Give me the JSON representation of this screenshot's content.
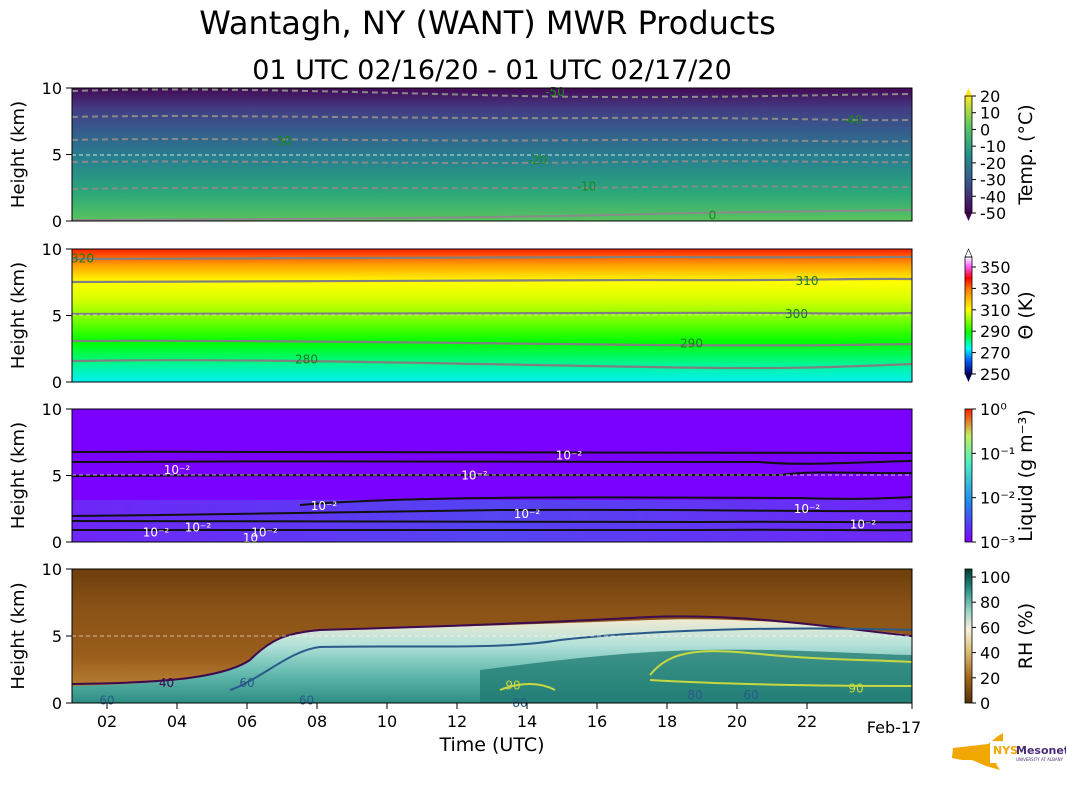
{
  "title": "Wantagh, NY (WANT) MWR Products",
  "subtitle": "01 UTC 02/16/20 - 01 UTC 02/17/20",
  "logo": {
    "text": "NYS Mesonet",
    "sub": "UNIVERSITY AT ALBANY"
  },
  "colors": {
    "contour_gray": "#888888",
    "label_green": "#1a8a1a",
    "liquid_bg": "#7a00ff",
    "rh_brown": "#7a4a12",
    "rh_teal": "#1f7a70"
  },
  "chart_data": [
    {
      "type": "heatmap",
      "panel": "temperature",
      "ylabel": "Height (km)",
      "ylim": [
        0,
        10
      ],
      "yticks": [
        "0",
        "5",
        "10"
      ],
      "colorbar_label": "Temp. (°C)",
      "colorbar_ticks": [
        "20",
        "10",
        "0",
        "-10",
        "-20",
        "-30",
        "-40",
        "-50"
      ],
      "contours": [
        {
          "label": "-50",
          "height_km": 9.7,
          "label_time": 14.8
        },
        {
          "label": "-40",
          "height_km": 7.6,
          "label_time": 23.3
        },
        {
          "label": "-30",
          "height_km": 6.0,
          "label_time": 7.0
        },
        {
          "label": "-20",
          "height_km": 4.6,
          "label_time": 14.3
        },
        {
          "label": "-10",
          "height_km": 2.6,
          "label_time": 15.7
        },
        {
          "label": "0",
          "height_km": 0.4,
          "label_time": 19.3
        }
      ]
    },
    {
      "type": "heatmap",
      "panel": "potential_temperature",
      "ylabel": "Height (km)",
      "ylim": [
        0,
        10
      ],
      "yticks": [
        "0",
        "5",
        "10"
      ],
      "colorbar_label": "Θ (K)",
      "colorbar_ticks": [
        "350",
        "330",
        "310",
        "290",
        "270",
        "250"
      ],
      "contours": [
        {
          "label": "320",
          "height_km": 9.3,
          "label_time": 1.3
        },
        {
          "label": "310",
          "height_km": 7.6,
          "label_time": 22.0
        },
        {
          "label": "300",
          "height_km": 5.1,
          "label_time": 21.7
        },
        {
          "label": "290",
          "height_km": 2.9,
          "label_time": 18.7
        },
        {
          "label": "280",
          "height_km": 1.7,
          "label_time": 7.7
        }
      ]
    },
    {
      "type": "heatmap",
      "panel": "liquid",
      "ylabel": "Height (km)",
      "ylim": [
        0,
        10
      ],
      "yticks": [
        "0",
        "5",
        "10"
      ],
      "colorbar_label": "Liquid (g m⁻³)",
      "colorbar_ticks": [
        "10⁰",
        "10⁻¹",
        "10⁻²",
        "10⁻³"
      ],
      "contour_labels": [
        {
          "label": "10⁻²",
          "height_km": 6.5,
          "label_time": 15.2
        },
        {
          "label": "10⁻²",
          "height_km": 5.4,
          "label_time": 4.0
        },
        {
          "label": "10⁻²",
          "height_km": 5.0,
          "label_time": 12.5
        },
        {
          "label": "10⁻²",
          "height_km": 2.7,
          "label_time": 8.2
        },
        {
          "label": "10⁻²",
          "height_km": 2.1,
          "label_time": 14.0
        },
        {
          "label": "10⁻²",
          "height_km": 2.5,
          "label_time": 22.0
        },
        {
          "label": "10⁻²",
          "height_km": 1.1,
          "label_time": 4.6
        },
        {
          "label": "10⁻²",
          "height_km": 0.7,
          "label_time": 3.4
        },
        {
          "label": "10⁻²",
          "height_km": 0.7,
          "label_time": 6.5
        },
        {
          "label": "10",
          "height_km": 0.3,
          "label_time": 6.1
        },
        {
          "label": "10⁻²",
          "height_km": 1.3,
          "label_time": 23.6
        }
      ]
    },
    {
      "type": "heatmap",
      "panel": "relative_humidity",
      "ylabel": "Height (km)",
      "xlabel": "Time (UTC)",
      "ylim": [
        0,
        10
      ],
      "yticks": [
        "0",
        "5",
        "10"
      ],
      "xticks": [
        "02",
        "04",
        "06",
        "08",
        "10",
        "12",
        "14",
        "16",
        "18",
        "20",
        "22"
      ],
      "xtick_hours": [
        2,
        4,
        6,
        8,
        10,
        12,
        14,
        16,
        18,
        20,
        22
      ],
      "x_end_label": "Feb-17",
      "xlim_hours": [
        1,
        25
      ],
      "colorbar_label": "RH (%)",
      "colorbar_ticks": [
        "100",
        "80",
        "60",
        "40",
        "20",
        "0"
      ],
      "contours": [
        {
          "label": "40",
          "height_km": 1.5,
          "label_time": 3.7
        },
        {
          "label": "60",
          "height_km": 1.5,
          "label_time": 6.0
        },
        {
          "label": "60",
          "height_km": 0.2,
          "label_time": 2.0
        },
        {
          "label": "60",
          "height_km": 0.2,
          "label_time": 7.7
        },
        {
          "label": "80",
          "height_km": 0.0,
          "label_time": 13.8
        },
        {
          "label": "90",
          "height_km": 1.3,
          "label_time": 13.6
        },
        {
          "label": "60",
          "height_km": 0.6,
          "label_time": 20.4
        },
        {
          "label": "90",
          "height_km": 1.1,
          "label_time": 23.4
        },
        {
          "label": "80",
          "height_km": 0.6,
          "label_time": 18.8
        }
      ]
    }
  ]
}
